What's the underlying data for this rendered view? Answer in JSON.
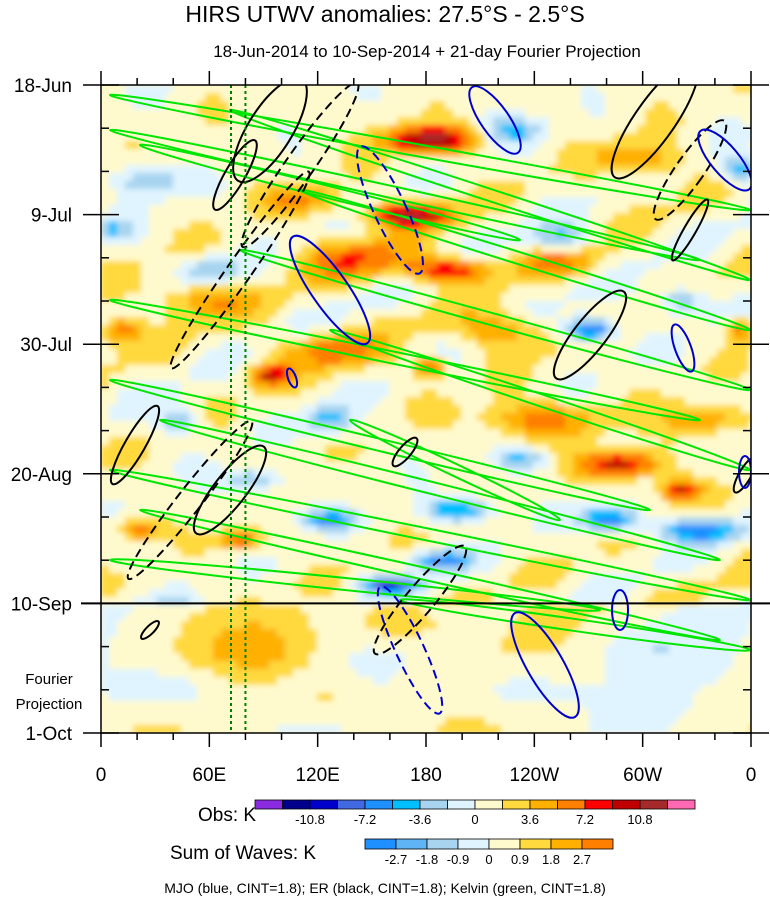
{
  "chart_data": {
    "type": "heatmap",
    "title": "HIRS UTWV anomalies: 27.5°S - 2.5°S",
    "subtitle": "18-Jun-2014 to 10-Sep-2014 + 21-day Fourier Projection",
    "x_tick_labels": [
      "0",
      "60E",
      "120E",
      "180",
      "120W",
      "60W",
      "0"
    ],
    "x_tick_lon": [
      0,
      60,
      120,
      180,
      240,
      300,
      360
    ],
    "xlim": [
      0,
      360
    ],
    "y_tick_labels": [
      "18-Jun",
      "9-Jul",
      "30-Jul",
      "20-Aug",
      "10-Sep",
      "1-Oct"
    ],
    "y_tick_days": [
      0,
      21,
      42,
      63,
      84,
      105
    ],
    "ylim_days": [
      0,
      105
    ],
    "obs_end_day": 84,
    "projection_label_line1": "Fourier",
    "projection_label_line2": "Projection",
    "dotted_lon_lines": [
      72,
      80
    ],
    "obs_colorbar": {
      "title": "Obs: K",
      "colors": [
        "#8a2be2",
        "#00008b",
        "#0000cd",
        "#4169e1",
        "#1e90ff",
        "#00bfff",
        "#a8d4f0",
        "#e0f4ff",
        "#fffacd",
        "#ffd93d",
        "#ffb000",
        "#ff7f00",
        "#ff0000",
        "#c00000",
        "#a52a2a",
        "#ff69b4"
      ],
      "tick_labels": [
        "-10.8",
        "-7.2",
        "-3.6",
        "0",
        "3.6",
        "7.2",
        "10.8"
      ],
      "tick_boundaries": [
        2,
        4,
        6,
        8,
        10,
        12,
        14
      ]
    },
    "waves_colorbar": {
      "title": "Sum of Waves: K",
      "colors": [
        "#1e90ff",
        "#5fb4f5",
        "#a8d4f0",
        "#e0f4ff",
        "#fffacd",
        "#ffd93d",
        "#ffb000",
        "#ff7f00"
      ],
      "tick_labels": [
        "-2.7",
        "-1.8",
        "-0.9",
        "0",
        "0.9",
        "1.8",
        "2.7"
      ],
      "tick_boundaries": [
        1,
        2,
        3,
        4,
        5,
        6,
        7
      ]
    },
    "footer": "MJO (blue, CINT=1.8); ER (black, CINT=1.8); Kelvin (green, CINT=1.8)",
    "wave_colors": {
      "mjo": "#0000cd",
      "er": "#000000",
      "kelvin": "#00e600"
    }
  }
}
